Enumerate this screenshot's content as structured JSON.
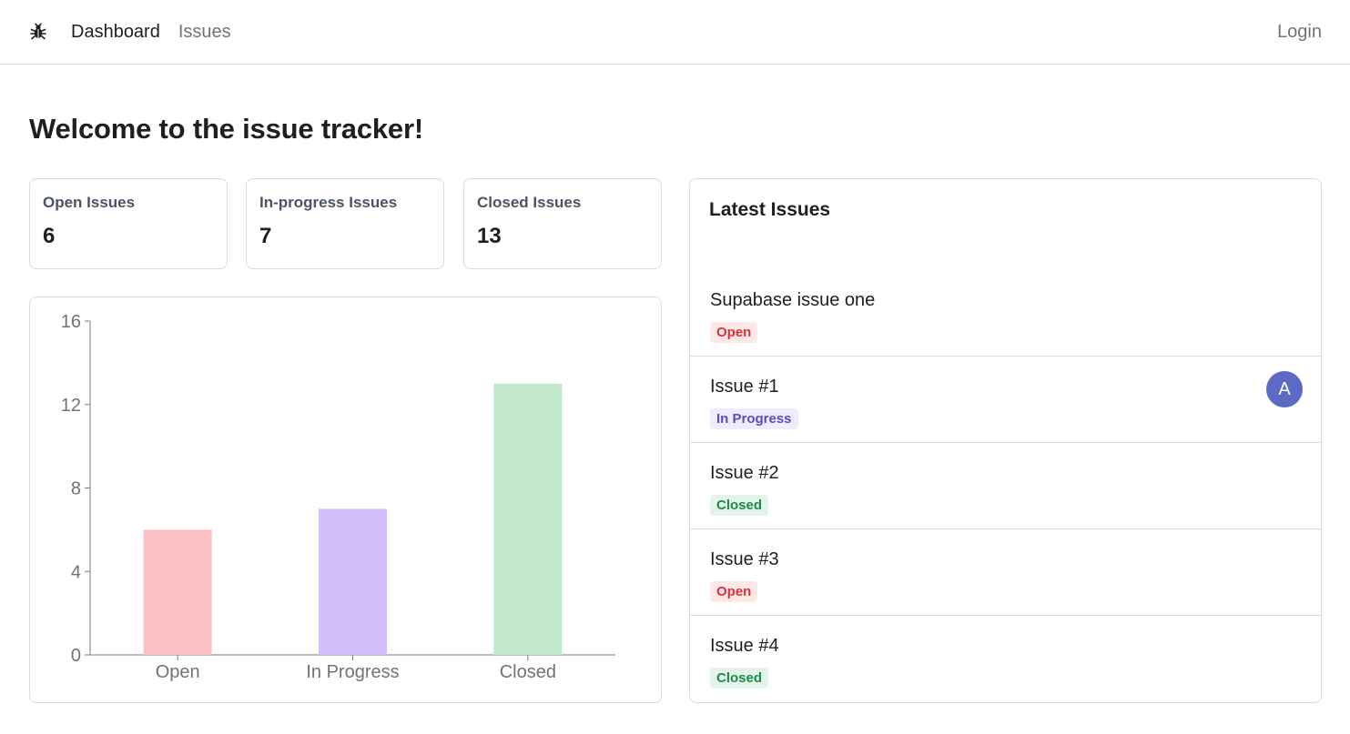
{
  "nav": {
    "logo_icon": "bug-icon",
    "links": [
      {
        "label": "Dashboard",
        "active": true
      },
      {
        "label": "Issues",
        "active": false
      }
    ],
    "login_label": "Login"
  },
  "page_title": "Welcome to the issue tracker!",
  "stats": [
    {
      "label": "Open Issues",
      "value": "6"
    },
    {
      "label": "In-progress Issues",
      "value": "7"
    },
    {
      "label": "Closed Issues",
      "value": "13"
    }
  ],
  "chart_data": {
    "type": "bar",
    "categories": [
      "Open",
      "In Progress",
      "Closed"
    ],
    "values": [
      6,
      7,
      13
    ],
    "colors": [
      "#fbc0c3",
      "#d3c0fa",
      "#c1e8cc"
    ],
    "yticks": [
      0,
      4,
      8,
      12,
      16
    ],
    "ylim": [
      0,
      16
    ],
    "title": "",
    "xlabel": "",
    "ylabel": "",
    "grid": false
  },
  "latest_issues": {
    "title": "Latest Issues",
    "items": [
      {
        "title": "Supabase issue one",
        "status": "Open",
        "status_class": "open",
        "avatar": null
      },
      {
        "title": "Issue #1",
        "status": "In Progress",
        "status_class": "inprogress",
        "avatar": "A"
      },
      {
        "title": "Issue #2",
        "status": "Closed",
        "status_class": "closed",
        "avatar": null
      },
      {
        "title": "Issue #3",
        "status": "Open",
        "status_class": "open",
        "avatar": null
      },
      {
        "title": "Issue #4",
        "status": "Closed",
        "status_class": "closed",
        "avatar": null
      }
    ]
  },
  "colors": {
    "border": "#dcdcdc",
    "avatar": "#5b6ac4",
    "open_badge_bg": "#fde8e8",
    "open_badge_text": "#d9313a",
    "inprogress_badge_bg": "#efecfd",
    "inprogress_badge_text": "#5b4bc4",
    "closed_badge_bg": "#e3f5ea",
    "closed_badge_text": "#1f8a4c"
  }
}
